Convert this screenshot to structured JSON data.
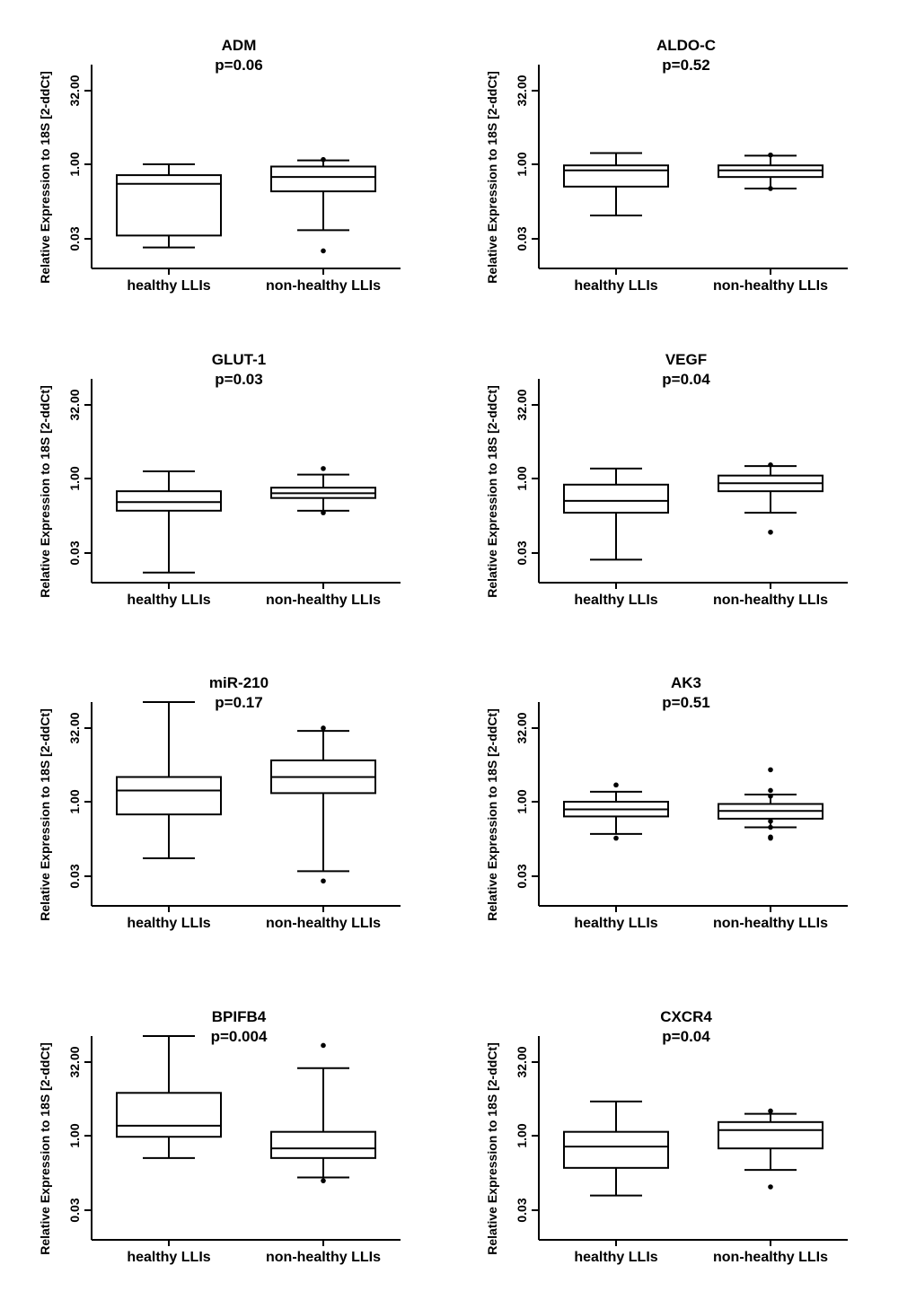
{
  "figure": {
    "ylabel": "Relative Expression to 18S [2-ddCt]",
    "categories": [
      "healthy LLIs",
      "non-healthy LLIs"
    ]
  },
  "chart_data": [
    {
      "type": "boxplot",
      "title": "ADM",
      "p_label": "p=0.06",
      "ylabel": "Relative Expression to 18S [2-ddCt]",
      "yscale": "log2",
      "yticks": [
        "0.03",
        "1.00",
        "32.00"
      ],
      "ylim": [
        0.012,
        120
      ],
      "categories": [
        "healthy LLIs",
        "non-healthy LLIs"
      ],
      "series": [
        {
          "name": "healthy LLIs",
          "whisker_low": 0.02,
          "q1": 0.035,
          "median": 0.4,
          "q3": 0.6,
          "whisker_high": 1.0,
          "outliers": []
        },
        {
          "name": "non-healthy LLIs",
          "whisker_low": 0.045,
          "q1": 0.28,
          "median": 0.55,
          "q3": 0.9,
          "whisker_high": 1.2,
          "outliers": [
            0.017,
            1.25
          ]
        }
      ]
    },
    {
      "type": "boxplot",
      "title": "ALDO-C",
      "p_label": "p=0.52",
      "ylabel": "Relative Expression to 18S [2-ddCt]",
      "yscale": "log2",
      "yticks": [
        "0.03",
        "1.00",
        "32.00"
      ],
      "ylim": [
        0.012,
        120
      ],
      "categories": [
        "healthy LLIs",
        "non-healthy LLIs"
      ],
      "series": [
        {
          "name": "healthy LLIs",
          "whisker_low": 0.09,
          "q1": 0.35,
          "median": 0.75,
          "q3": 0.95,
          "whisker_high": 1.7,
          "outliers": []
        },
        {
          "name": "non-healthy LLIs",
          "whisker_low": 0.32,
          "q1": 0.55,
          "median": 0.75,
          "q3": 0.95,
          "whisker_high": 1.5,
          "outliers": [
            0.32,
            1.55
          ]
        }
      ]
    },
    {
      "type": "boxplot",
      "title": "GLUT-1",
      "p_label": "p=0.03",
      "ylabel": "Relative Expression to 18S [2-ddCt]",
      "yscale": "log2",
      "yticks": [
        "0.03",
        "1.00",
        "32.00"
      ],
      "ylim": [
        0.012,
        120
      ],
      "categories": [
        "healthy LLIs",
        "non-healthy LLIs"
      ],
      "series": [
        {
          "name": "healthy LLIs",
          "whisker_low": 0.012,
          "q1": 0.22,
          "median": 0.33,
          "q3": 0.55,
          "whisker_high": 1.4,
          "outliers": []
        },
        {
          "name": "non-healthy LLIs",
          "whisker_low": 0.22,
          "q1": 0.4,
          "median": 0.5,
          "q3": 0.65,
          "whisker_high": 1.2,
          "outliers": [
            0.2,
            1.6
          ]
        }
      ]
    },
    {
      "type": "boxplot",
      "title": "VEGF",
      "p_label": "p=0.04",
      "ylabel": "Relative Expression to 18S [2-ddCt]",
      "yscale": "log2",
      "yticks": [
        "0.03",
        "1.00",
        "32.00"
      ],
      "ylim": [
        0.012,
        120
      ],
      "categories": [
        "healthy LLIs",
        "non-healthy LLIs"
      ],
      "series": [
        {
          "name": "healthy LLIs",
          "whisker_low": 0.022,
          "q1": 0.2,
          "median": 0.35,
          "q3": 0.75,
          "whisker_high": 1.6,
          "outliers": []
        },
        {
          "name": "non-healthy LLIs",
          "whisker_low": 0.2,
          "q1": 0.55,
          "median": 0.8,
          "q3": 1.15,
          "whisker_high": 1.8,
          "outliers": [
            0.08,
            1.9
          ]
        }
      ]
    },
    {
      "type": "boxplot",
      "title": "miR-210",
      "p_label": "p=0.17",
      "ylabel": "Relative Expression to 18S [2-ddCt]",
      "yscale": "log2",
      "yticks": [
        "0.03",
        "1.00",
        "32.00"
      ],
      "ylim": [
        0.012,
        120
      ],
      "categories": [
        "healthy LLIs",
        "non-healthy LLIs"
      ],
      "series": [
        {
          "name": "healthy LLIs",
          "whisker_low": 0.07,
          "q1": 0.55,
          "median": 1.7,
          "q3": 3.2,
          "whisker_high": 110,
          "outliers": []
        },
        {
          "name": "non-healthy LLIs",
          "whisker_low": 0.038,
          "q1": 1.5,
          "median": 3.2,
          "q3": 7.0,
          "whisker_high": 28,
          "outliers": [
            0.024,
            32
          ]
        }
      ]
    },
    {
      "type": "boxplot",
      "title": "AK3",
      "p_label": "p=0.51",
      "ylabel": "Relative Expression to 18S [2-ddCt]",
      "yscale": "log2",
      "yticks": [
        "0.03",
        "1.00",
        "32.00"
      ],
      "ylim": [
        0.012,
        120
      ],
      "categories": [
        "healthy LLIs",
        "non-healthy LLIs"
      ],
      "series": [
        {
          "name": "healthy LLIs",
          "whisker_low": 0.22,
          "q1": 0.5,
          "median": 0.7,
          "q3": 1.0,
          "whisker_high": 1.6,
          "outliers": [
            0.18,
            2.2
          ]
        },
        {
          "name": "non-healthy LLIs",
          "whisker_low": 0.3,
          "q1": 0.45,
          "median": 0.65,
          "q3": 0.9,
          "whisker_high": 1.4,
          "outliers": [
            0.18,
            0.19,
            0.3,
            0.4,
            1.3,
            1.7,
            4.5
          ]
        }
      ]
    },
    {
      "type": "boxplot",
      "title": "BPIFB4",
      "p_label": "p=0.004",
      "ylabel": "Relative Expression to 18S [2-ddCt]",
      "yscale": "log2",
      "yticks": [
        "0.03",
        "1.00",
        "32.00"
      ],
      "ylim": [
        0.012,
        120
      ],
      "categories": [
        "healthy LLIs",
        "non-healthy LLIs"
      ],
      "series": [
        {
          "name": "healthy LLIs",
          "whisker_low": 0.35,
          "q1": 0.95,
          "median": 1.6,
          "q3": 7.5,
          "whisker_high": 110,
          "outliers": []
        },
        {
          "name": "non-healthy LLIs",
          "whisker_low": 0.14,
          "q1": 0.35,
          "median": 0.55,
          "q3": 1.2,
          "whisker_high": 24,
          "outliers": [
            0.12,
            70
          ]
        }
      ]
    },
    {
      "type": "boxplot",
      "title": "CXCR4",
      "p_label": "p=0.04",
      "ylabel": "Relative Expression to 18S [2-ddCt]",
      "yscale": "log2",
      "yticks": [
        "0.03",
        "1.00",
        "32.00"
      ],
      "ylim": [
        0.012,
        120
      ],
      "categories": [
        "healthy LLIs",
        "non-healthy LLIs"
      ],
      "series": [
        {
          "name": "healthy LLIs",
          "whisker_low": 0.06,
          "q1": 0.22,
          "median": 0.6,
          "q3": 1.2,
          "whisker_high": 5.0,
          "outliers": []
        },
        {
          "name": "non-healthy LLIs",
          "whisker_low": 0.2,
          "q1": 0.55,
          "median": 1.3,
          "q3": 1.9,
          "whisker_high": 2.8,
          "outliers": [
            0.09,
            3.2
          ]
        }
      ]
    }
  ]
}
